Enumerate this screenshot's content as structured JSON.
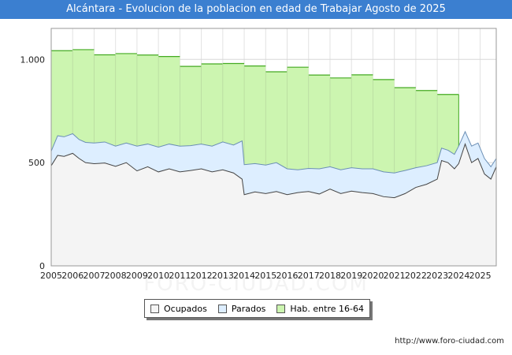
{
  "chart_data": {
    "type": "area",
    "title": "Alcántara - Evolucion de la poblacion en edad de Trabajar Agosto de 2025",
    "xlabel": "",
    "ylabel": "",
    "ylim": [
      0,
      1150
    ],
    "xlim": [
      2005,
      2025.75
    ],
    "y_ticks": [
      0,
      500,
      1000
    ],
    "y_tick_labels": [
      "0",
      "500",
      "1.000"
    ],
    "x_ticks": [
      2005,
      2006,
      2007,
      2008,
      2009,
      2010,
      2011,
      2012,
      2013,
      2014,
      2015,
      2016,
      2017,
      2018,
      2019,
      2020,
      2021,
      2022,
      2023,
      2024,
      2025
    ],
    "x_tick_labels": [
      "2005",
      "2006",
      "2007",
      "2008",
      "2009",
      "2010",
      "2011",
      "2012",
      "2013",
      "2014",
      "2015",
      "2016",
      "2017",
      "2018",
      "2019",
      "2020",
      "2021",
      "2022",
      "2023",
      "2024",
      "2025"
    ],
    "grid": true,
    "legend_position": "bottom-center",
    "series": [
      {
        "name": "Hab. entre 16-64",
        "color": "#ccf5b0",
        "line_color": "#44aa22",
        "x": [
          2005,
          2006,
          2007,
          2008,
          2009,
          2010,
          2011,
          2012,
          2013,
          2014,
          2015,
          2016,
          2017,
          2018,
          2019,
          2020,
          2021,
          2022,
          2023
        ],
        "values": [
          1042,
          1047,
          1022,
          1028,
          1021,
          1014,
          966,
          978,
          980,
          968,
          940,
          962,
          924,
          910,
          925,
          902,
          863,
          849,
          830
        ]
      },
      {
        "name": "Parados",
        "color": "#ddeeff",
        "line_color": "#6b8fb5",
        "x": [
          2005.0,
          2005.3,
          2005.6,
          2006.0,
          2006.3,
          2006.6,
          2007.0,
          2007.5,
          2008.0,
          2008.5,
          2009.0,
          2009.5,
          2010.0,
          2010.5,
          2011.0,
          2011.5,
          2012.0,
          2012.5,
          2013.0,
          2013.5,
          2013.9,
          2014.0,
          2014.5,
          2015.0,
          2015.5,
          2016.0,
          2016.5,
          2017.0,
          2017.5,
          2018.0,
          2018.5,
          2019.0,
          2019.5,
          2020.0,
          2020.5,
          2021.0,
          2021.5,
          2022.0,
          2022.5,
          2023.0,
          2023.2,
          2023.5,
          2023.8,
          2024.0,
          2024.3,
          2024.6,
          2024.9,
          2025.2,
          2025.5,
          2025.75
        ],
        "values": [
          555,
          630,
          625,
          640,
          612,
          598,
          595,
          600,
          580,
          595,
          580,
          590,
          575,
          590,
          580,
          582,
          590,
          580,
          600,
          585,
          605,
          490,
          495,
          488,
          500,
          470,
          465,
          472,
          470,
          480,
          465,
          475,
          470,
          470,
          455,
          450,
          462,
          475,
          485,
          500,
          570,
          560,
          540,
          580,
          650,
          580,
          595,
          520,
          480,
          520
        ]
      },
      {
        "name": "Ocupados",
        "color": "#f4f4f4",
        "line_color": "#444444",
        "x": [
          2005.0,
          2005.3,
          2005.6,
          2006.0,
          2006.3,
          2006.6,
          2007.0,
          2007.5,
          2008.0,
          2008.5,
          2009.0,
          2009.5,
          2010.0,
          2010.5,
          2011.0,
          2011.5,
          2012.0,
          2012.5,
          2013.0,
          2013.5,
          2013.9,
          2014.0,
          2014.5,
          2015.0,
          2015.5,
          2016.0,
          2016.5,
          2017.0,
          2017.5,
          2018.0,
          2018.5,
          2019.0,
          2019.5,
          2020.0,
          2020.5,
          2021.0,
          2021.5,
          2022.0,
          2022.5,
          2023.0,
          2023.2,
          2023.5,
          2023.8,
          2024.0,
          2024.3,
          2024.6,
          2024.9,
          2025.2,
          2025.5,
          2025.75
        ],
        "values": [
          485,
          535,
          530,
          545,
          520,
          500,
          495,
          498,
          482,
          500,
          460,
          480,
          455,
          470,
          455,
          462,
          470,
          455,
          465,
          450,
          420,
          345,
          358,
          350,
          360,
          345,
          355,
          360,
          348,
          372,
          350,
          362,
          355,
          350,
          335,
          330,
          350,
          380,
          395,
          420,
          510,
          500,
          470,
          495,
          590,
          500,
          520,
          445,
          420,
          480
        ]
      }
    ]
  },
  "legend_items": [
    {
      "label": "Ocupados",
      "color": "#f4f4f4"
    },
    {
      "label": "Parados",
      "color": "#ddeeff"
    },
    {
      "label": "Hab. entre 16-64",
      "color": "#ccf5b0"
    }
  ],
  "source_url": "http://www.foro-ciudad.com",
  "watermark_text": "FORO-CIUDAD.COM"
}
